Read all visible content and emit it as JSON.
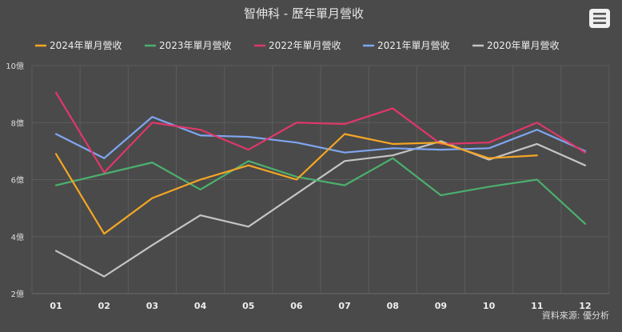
{
  "chart_data": {
    "type": "line",
    "title": "智伸科 - 歷年單月營收",
    "categories": [
      "01",
      "02",
      "03",
      "04",
      "05",
      "06",
      "07",
      "08",
      "09",
      "10",
      "11",
      "12"
    ],
    "y_tick_labels": [
      "2億",
      "4億",
      "6億",
      "8億",
      "10億"
    ],
    "ylim": [
      2,
      10
    ],
    "ylabel_unit": "億",
    "xlabel": "",
    "grid": true,
    "legend_position": "top",
    "series": [
      {
        "name": "2024年單月營收",
        "color": "#f5a623",
        "values": [
          6.9,
          4.1,
          5.35,
          6.0,
          6.5,
          6.0,
          7.6,
          7.25,
          7.3,
          6.75,
          6.85,
          null
        ]
      },
      {
        "name": "2023年單月營收",
        "color": "#4caf6e",
        "values": [
          5.8,
          6.2,
          6.6,
          5.65,
          6.65,
          6.1,
          5.8,
          6.75,
          5.45,
          5.75,
          6.0,
          4.45
        ]
      },
      {
        "name": "2022年單月營收",
        "color": "#e0376a",
        "values": [
          9.05,
          6.25,
          8.0,
          7.75,
          7.05,
          8.0,
          7.95,
          8.5,
          7.25,
          7.3,
          8.0,
          6.95
        ]
      },
      {
        "name": "2021年單月營收",
        "color": "#7fa6f0",
        "values": [
          7.6,
          6.75,
          8.2,
          7.55,
          7.5,
          7.3,
          6.95,
          7.1,
          7.05,
          7.1,
          7.75,
          7.0
        ]
      },
      {
        "name": "2020年單月營收",
        "color": "#c4c4c4",
        "values": [
          3.5,
          2.6,
          3.7,
          4.75,
          4.35,
          5.5,
          6.65,
          6.85,
          7.35,
          6.7,
          7.25,
          6.5
        ]
      }
    ],
    "source": "資料來源: 優分析"
  }
}
